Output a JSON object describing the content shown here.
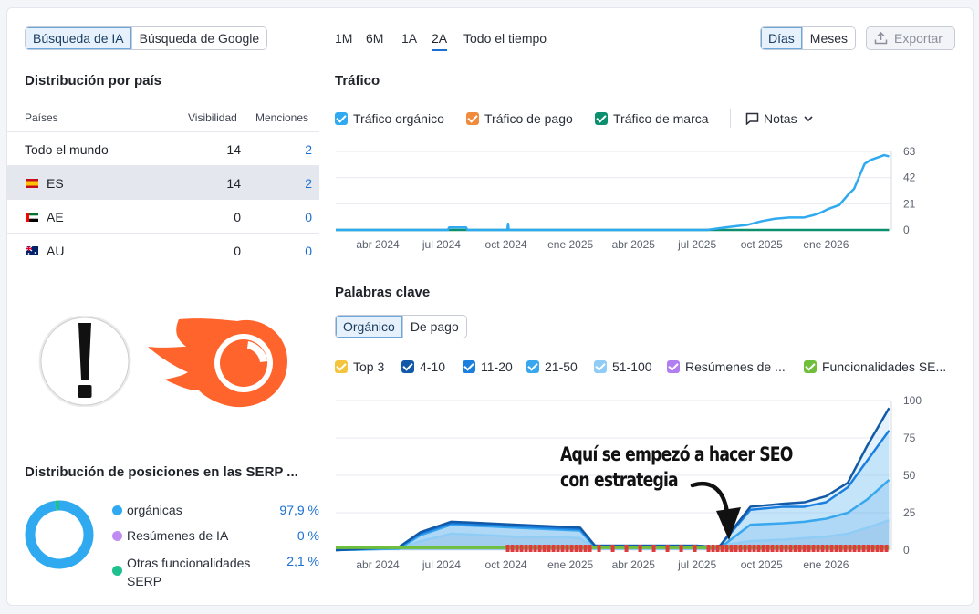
{
  "source_tabs": [
    {
      "label": "Búsqueda de IA",
      "active": true
    },
    {
      "label": "Búsqueda de Google",
      "active": false
    }
  ],
  "time_ranges": [
    {
      "label": "1M",
      "active": false
    },
    {
      "label": "6M",
      "active": false
    },
    {
      "label": "1A",
      "active": false
    },
    {
      "label": "2A",
      "active": true
    },
    {
      "label": "Todo el tiempo",
      "active": false
    }
  ],
  "granularity": [
    {
      "label": "Días",
      "active": true
    },
    {
      "label": "Meses",
      "active": false
    }
  ],
  "export_label": "Exportar",
  "country_distribution": {
    "title": "Distribución por país",
    "columns": [
      "Países",
      "Visibilidad",
      "Menciones"
    ],
    "rows": [
      {
        "country": "Todo el mundo",
        "flag": "",
        "visibility": "14",
        "mentions": "2"
      },
      {
        "country": "ES",
        "flag": "es-flag-icon",
        "visibility": "14",
        "mentions": "2"
      },
      {
        "country": "AE",
        "flag": "ae-flag-icon",
        "visibility": "0",
        "mentions": "0"
      },
      {
        "country": "AU",
        "flag": "au-flag-icon",
        "visibility": "0",
        "mentions": "0"
      }
    ]
  },
  "overlay_icons": [
    "exclamation-icon",
    "semrush-logo-icon"
  ],
  "serp_distribution": {
    "title": "Distribución de posiciones en las SERP ...",
    "items": [
      {
        "label": "orgánicas",
        "value": "97,9 %",
        "color": "#2fa9ef",
        "percent": 97.9
      },
      {
        "label": "Resúmenes de IA",
        "value": "0 %",
        "color": "#c08cf2",
        "percent": 0
      },
      {
        "label": "Otras funcionalidades SERP",
        "value": "2,1 %",
        "color": "#1ec08f",
        "percent": 2.1
      }
    ]
  },
  "traffic": {
    "title": "Tráfico",
    "legend": [
      {
        "label": "Tráfico orgánico",
        "color": "#2fa9ef"
      },
      {
        "label": "Tráfico de pago",
        "color": "#f08a3c"
      },
      {
        "label": "Tráfico de marca",
        "color": "#0b8f6e"
      }
    ],
    "notes_label": "Notas"
  },
  "keywords": {
    "title": "Palabras clave",
    "tabs": [
      {
        "label": "Orgánico",
        "active": true
      },
      {
        "label": "De pago",
        "active": false
      }
    ],
    "legend": [
      {
        "label": "Top 3",
        "color": "#f4c53c"
      },
      {
        "label": "4-10",
        "color": "#125aa8"
      },
      {
        "label": "11-20",
        "color": "#1b7fe0"
      },
      {
        "label": "21-50",
        "color": "#38a7ee"
      },
      {
        "label": "51-100",
        "color": "#8fcdf6"
      },
      {
        "label": "Resúmenes de ...",
        "color": "#b07ef0"
      },
      {
        "label": "Funcionalidades SE...",
        "color": "#6fbe3c"
      }
    ],
    "annotation_line1": "Aquí se empezó a hacer SEO",
    "annotation_line2": "con estrategia"
  },
  "chart_data": [
    {
      "type": "line",
      "title": "Tráfico",
      "x_tick_labels": [
        "abr 2024",
        "jul 2024",
        "oct 2024",
        "ene 2025",
        "abr 2025",
        "jul 2025",
        "oct 2025",
        "ene 2026"
      ],
      "y_ticks": [
        0,
        21,
        42,
        63
      ],
      "ylim": [
        0,
        63
      ],
      "grid": true,
      "series": [
        {
          "name": "Tráfico orgánico",
          "color": "#2fa9ef",
          "points": [
            [
              "2024-02-01",
              0
            ],
            [
              "2024-07-10",
              0
            ],
            [
              "2024-07-12",
              2
            ],
            [
              "2024-08-05",
              2
            ],
            [
              "2024-08-07",
              0
            ],
            [
              "2024-10-03",
              0
            ],
            [
              "2024-10-04",
              5
            ],
            [
              "2024-10-05",
              0
            ],
            [
              "2025-07-15",
              0
            ],
            [
              "2025-08-10",
              2
            ],
            [
              "2025-09-10",
              4
            ],
            [
              "2025-10-01",
              7
            ],
            [
              "2025-10-20",
              9
            ],
            [
              "2025-11-10",
              10
            ],
            [
              "2025-12-01",
              10
            ],
            [
              "2025-12-15",
              12
            ],
            [
              "2025-12-25",
              14
            ],
            [
              "2026-01-05",
              17
            ],
            [
              "2026-01-20",
              20
            ],
            [
              "2026-02-01",
              28
            ],
            [
              "2026-02-10",
              33
            ],
            [
              "2026-02-25",
              53
            ],
            [
              "2026-03-05",
              56
            ],
            [
              "2026-03-15",
              58
            ],
            [
              "2026-03-25",
              60
            ],
            [
              "2026-04-01",
              59
            ]
          ]
        },
        {
          "name": "Tráfico de marca",
          "color": "#0b8f6e",
          "points": [
            [
              "2024-02-01",
              0
            ],
            [
              "2026-04-01",
              0
            ]
          ]
        }
      ]
    },
    {
      "type": "area",
      "title": "Palabras clave",
      "x_tick_labels": [
        "abr 2024",
        "jul 2024",
        "oct 2024",
        "ene 2025",
        "abr 2025",
        "jul 2025",
        "oct 2025",
        "ene 2026"
      ],
      "y_ticks": [
        0,
        25,
        50,
        75,
        100
      ],
      "ylim": [
        0,
        100
      ],
      "grid": true,
      "series": [
        {
          "name": "4-10",
          "color": "#125aa8",
          "points": [
            [
              "2024-02-01",
              0
            ],
            [
              "2024-05-01",
              2
            ],
            [
              "2024-06-01",
              12
            ],
            [
              "2024-07-15",
              19
            ],
            [
              "2024-09-01",
              18
            ],
            [
              "2024-10-15",
              17
            ],
            [
              "2024-12-01",
              16
            ],
            [
              "2025-01-15",
              15
            ],
            [
              "2025-02-05",
              3
            ],
            [
              "2025-07-01",
              3
            ],
            [
              "2025-08-01",
              2
            ],
            [
              "2025-09-15",
              29
            ],
            [
              "2025-11-01",
              31
            ],
            [
              "2025-12-01",
              32
            ],
            [
              "2026-01-01",
              36
            ],
            [
              "2026-02-01",
              45
            ],
            [
              "2026-03-01",
              70
            ],
            [
              "2026-04-01",
              95
            ]
          ]
        },
        {
          "name": "11-20",
          "color": "#1b7fe0",
          "points": [
            [
              "2024-02-01",
              0
            ],
            [
              "2024-05-01",
              2
            ],
            [
              "2024-06-01",
              11
            ],
            [
              "2024-07-15",
              18
            ],
            [
              "2024-09-01",
              17
            ],
            [
              "2024-10-15",
              16
            ],
            [
              "2024-12-01",
              15
            ],
            [
              "2025-01-15",
              14
            ],
            [
              "2025-02-05",
              3
            ],
            [
              "2025-07-01",
              3
            ],
            [
              "2025-08-01",
              2
            ],
            [
              "2025-09-15",
              27
            ],
            [
              "2025-11-01",
              29
            ],
            [
              "2025-12-01",
              29
            ],
            [
              "2026-01-01",
              32
            ],
            [
              "2026-02-01",
              42
            ],
            [
              "2026-03-01",
              60
            ],
            [
              "2026-04-01",
              80
            ]
          ]
        },
        {
          "name": "21-50",
          "color": "#38a7ee",
          "points": [
            [
              "2024-02-01",
              0
            ],
            [
              "2024-05-01",
              1
            ],
            [
              "2024-06-01",
              10
            ],
            [
              "2024-07-15",
              17
            ],
            [
              "2024-09-01",
              16
            ],
            [
              "2024-10-15",
              15
            ],
            [
              "2024-12-01",
              14
            ],
            [
              "2025-01-15",
              13
            ],
            [
              "2025-02-05",
              2
            ],
            [
              "2025-07-01",
              2
            ],
            [
              "2025-08-01",
              1
            ],
            [
              "2025-09-15",
              17
            ],
            [
              "2025-11-01",
              18
            ],
            [
              "2025-12-01",
              19
            ],
            [
              "2026-01-01",
              21
            ],
            [
              "2026-02-01",
              25
            ],
            [
              "2026-03-01",
              34
            ],
            [
              "2026-04-01",
              47
            ]
          ]
        },
        {
          "name": "51-100",
          "color": "#8fcdf6",
          "points": [
            [
              "2024-02-01",
              0
            ],
            [
              "2024-05-01",
              1
            ],
            [
              "2024-06-01",
              6
            ],
            [
              "2024-07-15",
              11
            ],
            [
              "2024-09-01",
              10
            ],
            [
              "2024-10-15",
              9
            ],
            [
              "2024-12-01",
              9
            ],
            [
              "2025-01-15",
              8
            ],
            [
              "2025-02-05",
              1
            ],
            [
              "2025-07-01",
              1
            ],
            [
              "2025-09-15",
              6
            ],
            [
              "2025-11-01",
              7
            ],
            [
              "2025-12-01",
              8
            ],
            [
              "2026-01-01",
              9
            ],
            [
              "2026-02-01",
              11
            ],
            [
              "2026-03-01",
              15
            ],
            [
              "2026-04-01",
              20
            ]
          ]
        },
        {
          "name": "Funcionalidades SE...",
          "color": "#6fbe3c",
          "points": [
            [
              "2024-02-01",
              1
            ],
            [
              "2026-04-01",
              1
            ]
          ]
        }
      ]
    },
    {
      "type": "pie",
      "title": "Distribución de posiciones en las SERP ...",
      "slices": [
        {
          "label": "orgánicas",
          "value": 97.9,
          "color": "#2fa9ef"
        },
        {
          "label": "Resúmenes de IA",
          "value": 0,
          "color": "#c08cf2"
        },
        {
          "label": "Otras funcionalidades SERP",
          "value": 2.1,
          "color": "#1ec08f"
        }
      ]
    }
  ]
}
